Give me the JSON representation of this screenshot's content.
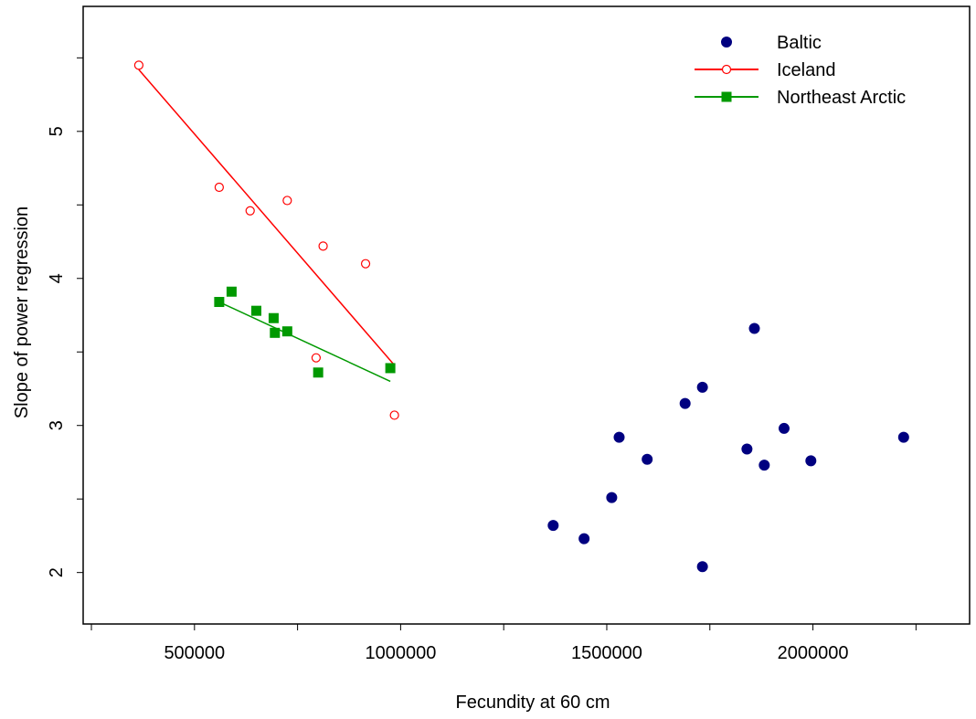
{
  "chart_data": {
    "type": "scatter",
    "title": "",
    "xlabel": "Fecundity at 60 cm",
    "ylabel": "Slope of power regression",
    "xlim": [
      230000,
      2380000
    ],
    "ylim": [
      1.65,
      5.85
    ],
    "x_ticks": [
      250000,
      500000,
      750000,
      1000000,
      1250000,
      1500000,
      1750000,
      2000000,
      2250000
    ],
    "x_tick_labels": [
      "500000",
      "1000000",
      "1500000",
      "2000000"
    ],
    "x_tick_label_values": [
      500000,
      1000000,
      1500000,
      2000000
    ],
    "y_ticks": [
      1.5,
      2.0,
      2.5,
      3.0,
      3.5,
      4.0,
      4.5,
      5.0,
      5.5
    ],
    "y_tick_labels": [
      "2",
      "3",
      "4",
      "5"
    ],
    "y_tick_label_values": [
      2,
      3,
      4,
      5
    ],
    "grid": false,
    "legend": "top-right",
    "series": [
      {
        "name": "Baltic",
        "marker": "filled-circle",
        "color": "#000080",
        "points": [
          {
            "x": 1370000,
            "y": 2.32
          },
          {
            "x": 1445000,
            "y": 2.23
          },
          {
            "x": 1512000,
            "y": 2.51
          },
          {
            "x": 1530000,
            "y": 2.92
          },
          {
            "x": 1598000,
            "y": 2.77
          },
          {
            "x": 1690000,
            "y": 3.15
          },
          {
            "x": 1732000,
            "y": 3.26
          },
          {
            "x": 1732000,
            "y": 2.04
          },
          {
            "x": 1840000,
            "y": 2.84
          },
          {
            "x": 1858000,
            "y": 3.66
          },
          {
            "x": 1882000,
            "y": 2.73
          },
          {
            "x": 1930000,
            "y": 2.98
          },
          {
            "x": 1995000,
            "y": 2.76
          },
          {
            "x": 2220000,
            "y": 2.92
          }
        ]
      },
      {
        "name": "Iceland",
        "marker": "open-circle",
        "color": "#ff0000",
        "points": [
          {
            "x": 365000,
            "y": 5.45
          },
          {
            "x": 560000,
            "y": 4.62
          },
          {
            "x": 635000,
            "y": 4.46
          },
          {
            "x": 725000,
            "y": 4.53
          },
          {
            "x": 812000,
            "y": 4.22
          },
          {
            "x": 915000,
            "y": 4.1
          },
          {
            "x": 795000,
            "y": 3.46
          },
          {
            "x": 985000,
            "y": 3.07
          }
        ],
        "fit_line": [
          {
            "x": 365000,
            "y": 5.42
          },
          {
            "x": 985000,
            "y": 3.41
          }
        ]
      },
      {
        "name": "Northeast Arctic",
        "marker": "filled-square",
        "color": "#009900",
        "points": [
          {
            "x": 560000,
            "y": 3.84
          },
          {
            "x": 590000,
            "y": 3.91
          },
          {
            "x": 650000,
            "y": 3.78
          },
          {
            "x": 692000,
            "y": 3.73
          },
          {
            "x": 695000,
            "y": 3.63
          },
          {
            "x": 725000,
            "y": 3.64
          },
          {
            "x": 800000,
            "y": 3.36
          },
          {
            "x": 975000,
            "y": 3.39
          }
        ],
        "fit_line": [
          {
            "x": 560000,
            "y": 3.84
          },
          {
            "x": 975000,
            "y": 3.3
          }
        ]
      }
    ]
  }
}
